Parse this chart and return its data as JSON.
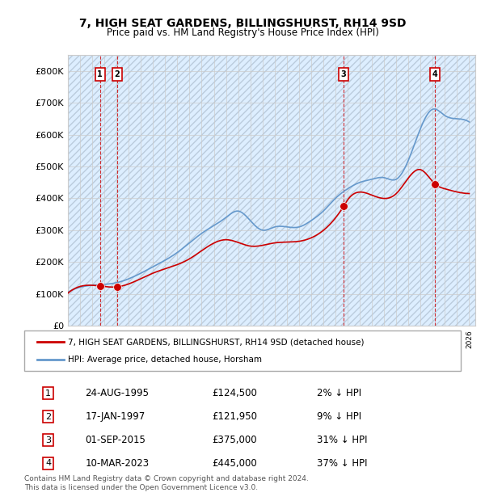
{
  "title": "7, HIGH SEAT GARDENS, BILLINGSHURST, RH14 9SD",
  "subtitle": "Price paid vs. HM Land Registry's House Price Index (HPI)",
  "ylabel": "",
  "ylim": [
    0,
    850000
  ],
  "yticks": [
    0,
    100000,
    200000,
    300000,
    400000,
    500000,
    600000,
    700000,
    800000
  ],
  "ytick_labels": [
    "£0",
    "£100K",
    "£200K",
    "£300K",
    "£400K",
    "£500K",
    "£600K",
    "£700K",
    "£800K"
  ],
  "xlim_start": 1993.0,
  "xlim_end": 2026.5,
  "purchases": [
    {
      "date": 1995.646,
      "price": 124500,
      "label": "1"
    },
    {
      "date": 1997.046,
      "price": 121950,
      "label": "2"
    },
    {
      "date": 2015.668,
      "price": 375000,
      "label": "3"
    },
    {
      "date": 2023.189,
      "price": 445000,
      "label": "4"
    }
  ],
  "table_rows": [
    {
      "num": "1",
      "date": "24-AUG-1995",
      "price": "£124,500",
      "hpi": "2% ↓ HPI"
    },
    {
      "num": "2",
      "date": "17-JAN-1997",
      "price": "£121,950",
      "hpi": "9% ↓ HPI"
    },
    {
      "num": "3",
      "date": "01-SEP-2015",
      "price": "£375,000",
      "hpi": "31% ↓ HPI"
    },
    {
      "num": "4",
      "date": "10-MAR-2023",
      "price": "£445,000",
      "hpi": "37% ↓ HPI"
    }
  ],
  "legend_property_label": "7, HIGH SEAT GARDENS, BILLINGSHURST, RH14 9SD (detached house)",
  "legend_hpi_label": "HPI: Average price, detached house, Horsham",
  "footer": "Contains HM Land Registry data © Crown copyright and database right 2024.\nThis data is licensed under the Open Government Licence v3.0.",
  "property_color": "#cc0000",
  "hpi_color": "#6699cc",
  "background_hatch_color": "#ddeeff",
  "grid_color": "#cccccc",
  "purchase_marker_color": "#cc0000",
  "dashed_line_color": "#cc0000"
}
